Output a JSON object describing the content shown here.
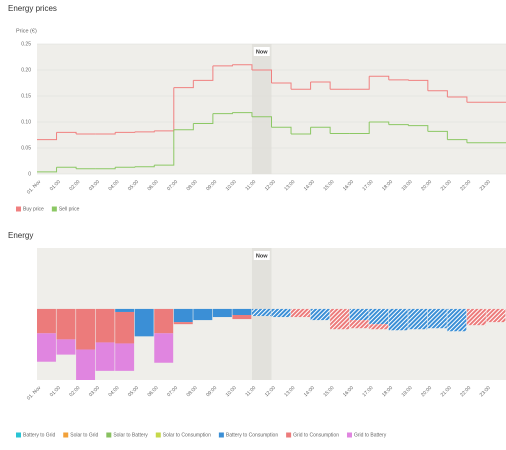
{
  "chart_data": [
    {
      "type": "line",
      "title": "Energy prices",
      "y_label": "Price (€)",
      "step": true,
      "grid": true,
      "now_label": "Now",
      "now_index": 11,
      "categories": [
        "01. Nov",
        "01:00",
        "02:00",
        "03:00",
        "04:00",
        "05:00",
        "06:00",
        "07:00",
        "08:00",
        "09:00",
        "10:00",
        "11:00",
        "12:00",
        "13:00",
        "14:00",
        "15:00",
        "16:00",
        "17:00",
        "18:00",
        "19:00",
        "20:00",
        "21:00",
        "22:00",
        "23:00"
      ],
      "series": [
        {
          "name": "Buy price",
          "color": "#f08080",
          "values": [
            0.066,
            0.08,
            0.077,
            0.077,
            0.08,
            0.081,
            0.083,
            0.166,
            0.18,
            0.208,
            0.21,
            0.2,
            0.175,
            0.163,
            0.177,
            0.163,
            0.163,
            0.188,
            0.181,
            0.18,
            0.16,
            0.148,
            0.138,
            0.138
          ]
        },
        {
          "name": "Sell price",
          "color": "#8cc864",
          "values": [
            0.004,
            0.013,
            0.01,
            0.01,
            0.013,
            0.014,
            0.017,
            0.085,
            0.097,
            0.116,
            0.118,
            0.11,
            0.09,
            0.077,
            0.09,
            0.078,
            0.078,
            0.1,
            0.095,
            0.093,
            0.082,
            0.066,
            0.06,
            0.06
          ]
        }
      ],
      "ylim": [
        0,
        0.25
      ],
      "yticks": [
        0,
        {
          "value": 0.05,
          "label": "0.05"
        },
        {
          "value": 0.1,
          "label": "0.10"
        },
        {
          "value": 0.15,
          "label": "0.15"
        },
        {
          "value": 0.2,
          "label": "0.20"
        },
        {
          "value": 0.25,
          "label": "0.25"
        }
      ]
    },
    {
      "type": "bar",
      "title": "Energy",
      "stacked": true,
      "forecast_hatched": true,
      "now_label": "Now",
      "now_index": 11,
      "categories": [
        "01. Nov",
        "01:00",
        "02:00",
        "03:00",
        "04:00",
        "05:00",
        "06:00",
        "07:00",
        "08:00",
        "09:00",
        "10:00",
        "11:00",
        "12:00",
        "13:00",
        "14:00",
        "15:00",
        "16:00",
        "17:00",
        "18:00",
        "19:00",
        "20:00",
        "21:00",
        "22:00",
        "23:00"
      ],
      "series": [
        {
          "name": "Battery to Grid",
          "color": "#29c4d4",
          "values": [
            0,
            0,
            0,
            0,
            0,
            0,
            0,
            0,
            0,
            0,
            0,
            0,
            0,
            0,
            0,
            0,
            0,
            0,
            0,
            0,
            0,
            0,
            0,
            0
          ]
        },
        {
          "name": "Solar to Grid",
          "color": "#f2a13a",
          "values": [
            0,
            0,
            0,
            0,
            0,
            0,
            0,
            0,
            0,
            0,
            0,
            0,
            0,
            0,
            0,
            0,
            0,
            0,
            0,
            0,
            0,
            0,
            0,
            0
          ]
        },
        {
          "name": "Solar to Battery",
          "color": "#88c060",
          "values": [
            0,
            0,
            0,
            0,
            0,
            0,
            0,
            0,
            0,
            0,
            0,
            0,
            0,
            0,
            0,
            0,
            0,
            0,
            0,
            0,
            0,
            0,
            0,
            0
          ]
        },
        {
          "name": "Solar to Consumption",
          "color": "#c6d84a",
          "values": [
            0,
            0,
            0,
            0,
            0,
            0,
            0,
            0,
            0,
            0,
            0,
            0,
            0,
            0,
            0,
            0,
            0,
            0,
            0,
            0,
            0,
            0,
            0,
            0
          ]
        },
        {
          "name": "Battery to Consumption",
          "color": "#3b8fd6",
          "values": [
            0,
            0,
            0,
            0,
            -0.06,
            -0.54,
            0,
            -0.26,
            -0.22,
            -0.16,
            -0.12,
            -0.14,
            -0.16,
            0,
            -0.22,
            0,
            -0.22,
            -0.3,
            -0.42,
            -0.4,
            -0.38,
            -0.44,
            0,
            0
          ]
        },
        {
          "name": "Grid to Consumption",
          "color": "#ec7b7b",
          "values": [
            -0.48,
            -0.6,
            -0.8,
            -0.66,
            -0.62,
            0,
            -0.48,
            -0.04,
            0,
            0,
            -0.08,
            0,
            0,
            -0.16,
            0,
            -0.4,
            -0.16,
            -0.1,
            0,
            0,
            0,
            0,
            -0.32,
            -0.26
          ]
        },
        {
          "name": "Grid to Battery",
          "color": "#e085e0",
          "values": [
            -0.56,
            -0.3,
            -0.6,
            -0.56,
            -0.54,
            0,
            -0.58,
            0,
            0,
            0,
            0,
            0,
            0,
            0,
            0,
            0,
            0,
            0,
            0,
            0,
            0,
            0,
            0,
            0
          ]
        }
      ],
      "ylim": [
        -1.4,
        1.2
      ]
    }
  ]
}
